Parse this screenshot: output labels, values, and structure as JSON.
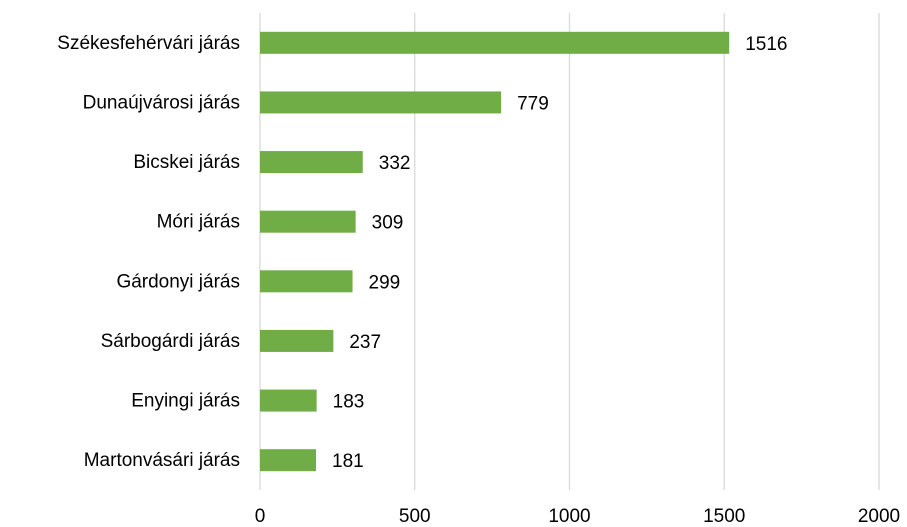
{
  "chart_data": {
    "type": "bar",
    "orientation": "horizontal",
    "categories": [
      "Székesfehérvári járás",
      "Dunaújvárosi járás",
      "Bicskei járás",
      "Móri járás",
      "Gárdonyi járás",
      "Sárbogárdi járás",
      "Enyingi járás",
      "Martonvásári járás"
    ],
    "values": [
      1516,
      779,
      332,
      309,
      299,
      237,
      183,
      181
    ],
    "color": "#70ad47",
    "xlim": [
      0,
      2000
    ],
    "xticks": [
      0,
      500,
      1000,
      1500,
      2000
    ],
    "grid": true
  }
}
